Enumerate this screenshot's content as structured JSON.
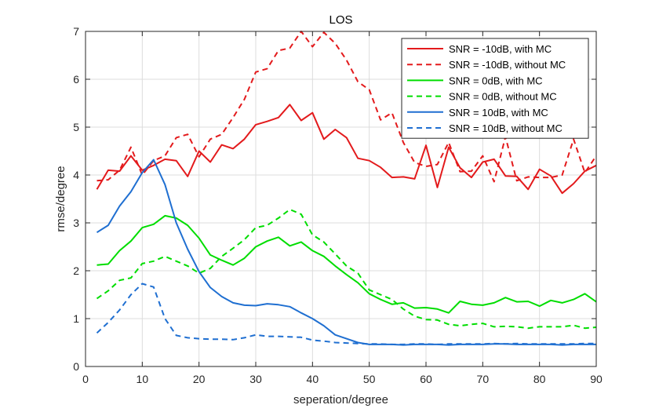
{
  "chart_data": {
    "type": "line",
    "title": "LOS",
    "xlabel": "seperation/degree",
    "ylabel": "rmse/degree",
    "xlim": [
      0,
      90
    ],
    "ylim": [
      0,
      7
    ],
    "xticks": [
      "0",
      "10",
      "20",
      "30",
      "40",
      "50",
      "60",
      "70",
      "80",
      "90"
    ],
    "yticks": [
      "0",
      "1",
      "2",
      "3",
      "4",
      "5",
      "6",
      "7"
    ],
    "grid": true,
    "legend_position": "top-right",
    "x": [
      2,
      4,
      6,
      8,
      10,
      12,
      14,
      16,
      18,
      20,
      22,
      24,
      26,
      28,
      30,
      32,
      34,
      36,
      38,
      40,
      42,
      44,
      46,
      48,
      50,
      52,
      54,
      56,
      58,
      60,
      62,
      64,
      66,
      68,
      70,
      72,
      74,
      76,
      78,
      80,
      82,
      84,
      86,
      88,
      90
    ],
    "series": [
      {
        "name": "SNR = -10dB, with MC",
        "color": "#e31a1c",
        "dash": "solid",
        "values": [
          3.7,
          4.1,
          4.08,
          4.4,
          4.1,
          4.2,
          4.33,
          4.3,
          3.97,
          4.5,
          4.27,
          4.63,
          4.55,
          4.75,
          5.05,
          5.12,
          5.2,
          5.47,
          5.14,
          5.3,
          4.75,
          4.95,
          4.78,
          4.35,
          4.3,
          4.16,
          3.95,
          3.96,
          3.92,
          4.62,
          3.74,
          4.58,
          4.15,
          3.95,
          4.27,
          4.33,
          3.98,
          3.97,
          3.7,
          4.12,
          3.98,
          3.62,
          3.82,
          4.08,
          4.2
        ]
      },
      {
        "name": "SNR = -10dB, without MC",
        "color": "#e31a1c",
        "dash": "dashed",
        "values": [
          3.88,
          3.9,
          4.1,
          4.58,
          4.0,
          4.3,
          4.4,
          4.78,
          4.85,
          4.38,
          4.75,
          4.85,
          5.2,
          5.58,
          6.15,
          6.22,
          6.6,
          6.65,
          7.0,
          6.68,
          6.98,
          6.75,
          6.4,
          5.95,
          5.78,
          5.15,
          5.3,
          4.68,
          4.26,
          4.18,
          4.22,
          4.68,
          4.07,
          4.08,
          4.4,
          3.86,
          4.8,
          3.88,
          3.96,
          3.95,
          3.95,
          4.0,
          4.75,
          4.05,
          4.4
        ]
      },
      {
        "name": "SNR = 0dB, with MC",
        "color": "#00dd00",
        "dash": "solid",
        "values": [
          2.12,
          2.14,
          2.42,
          2.62,
          2.9,
          2.97,
          3.15,
          3.1,
          2.95,
          2.68,
          2.33,
          2.22,
          2.12,
          2.26,
          2.5,
          2.62,
          2.7,
          2.52,
          2.6,
          2.42,
          2.3,
          2.1,
          1.92,
          1.75,
          1.52,
          1.4,
          1.3,
          1.33,
          1.22,
          1.23,
          1.2,
          1.12,
          1.36,
          1.3,
          1.28,
          1.33,
          1.44,
          1.35,
          1.36,
          1.26,
          1.38,
          1.33,
          1.4,
          1.52,
          1.35
        ]
      },
      {
        "name": "SNR = 0dB, without MC",
        "color": "#00dd00",
        "dash": "dashed",
        "values": [
          1.42,
          1.58,
          1.8,
          1.85,
          2.15,
          2.2,
          2.3,
          2.2,
          2.1,
          1.95,
          2.05,
          2.3,
          2.47,
          2.65,
          2.9,
          2.95,
          3.1,
          3.28,
          3.18,
          2.75,
          2.6,
          2.35,
          2.1,
          1.95,
          1.6,
          1.5,
          1.4,
          1.2,
          1.05,
          0.98,
          0.97,
          0.88,
          0.85,
          0.88,
          0.9,
          0.83,
          0.84,
          0.83,
          0.8,
          0.83,
          0.83,
          0.83,
          0.86,
          0.8,
          0.82
        ]
      },
      {
        "name": "SNR = 10dB, with MC",
        "color": "#1f6fd1",
        "dash": "solid",
        "values": [
          2.8,
          2.95,
          3.35,
          3.65,
          4.05,
          4.32,
          3.8,
          3.0,
          2.45,
          1.98,
          1.65,
          1.46,
          1.33,
          1.28,
          1.27,
          1.31,
          1.29,
          1.25,
          1.12,
          1.0,
          0.85,
          0.66,
          0.58,
          0.5,
          0.46,
          0.46,
          0.46,
          0.45,
          0.46,
          0.46,
          0.46,
          0.45,
          0.46,
          0.46,
          0.46,
          0.47,
          0.47,
          0.46,
          0.46,
          0.46,
          0.46,
          0.45,
          0.46,
          0.46,
          0.46
        ]
      },
      {
        "name": "SNR = 10dB, without MC",
        "color": "#1f6fd1",
        "dash": "dashed",
        "values": [
          0.7,
          0.92,
          1.18,
          1.5,
          1.73,
          1.66,
          1.0,
          0.65,
          0.6,
          0.58,
          0.57,
          0.57,
          0.56,
          0.6,
          0.66,
          0.63,
          0.63,
          0.62,
          0.61,
          0.55,
          0.53,
          0.5,
          0.49,
          0.48,
          0.47,
          0.47,
          0.46,
          0.46,
          0.47,
          0.47,
          0.46,
          0.47,
          0.47,
          0.47,
          0.47,
          0.48,
          0.47,
          0.48,
          0.47,
          0.47,
          0.47,
          0.47,
          0.47,
          0.48,
          0.48
        ]
      }
    ]
  }
}
